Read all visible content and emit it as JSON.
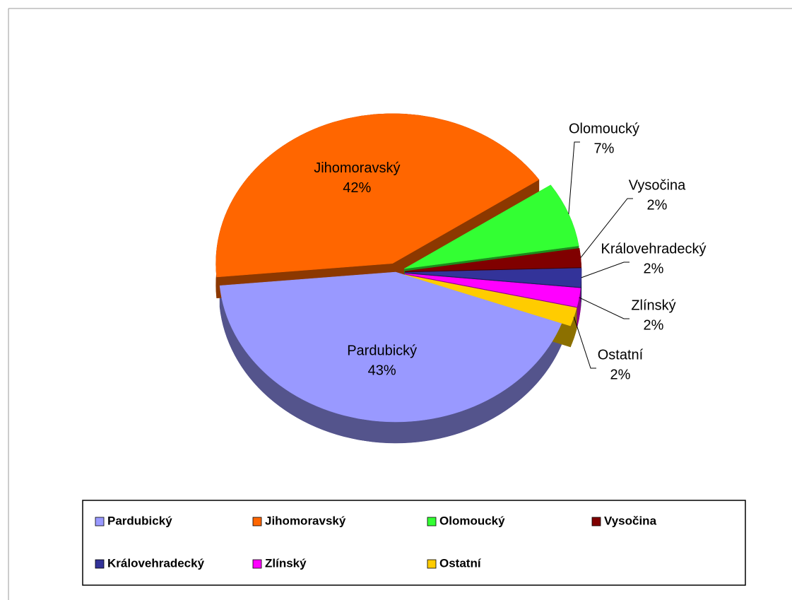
{
  "chart_data": {
    "type": "pie",
    "categories": [
      "Pardubický",
      "Jihomoravský",
      "Olomoucký",
      "Vysočina",
      "Královehradecký",
      "Zlínský",
      "Ostatní"
    ],
    "values": [
      43,
      42,
      7,
      2,
      2,
      2,
      2
    ],
    "value_labels": [
      "43%",
      "42%",
      "7%",
      "2%",
      "2%",
      "2%",
      "2%"
    ],
    "colors": [
      "#9999ff",
      "#ff6600",
      "#33ff33",
      "#800000",
      "#333399",
      "#ff00ff",
      "#ffcc00"
    ],
    "legend": "bottom"
  }
}
